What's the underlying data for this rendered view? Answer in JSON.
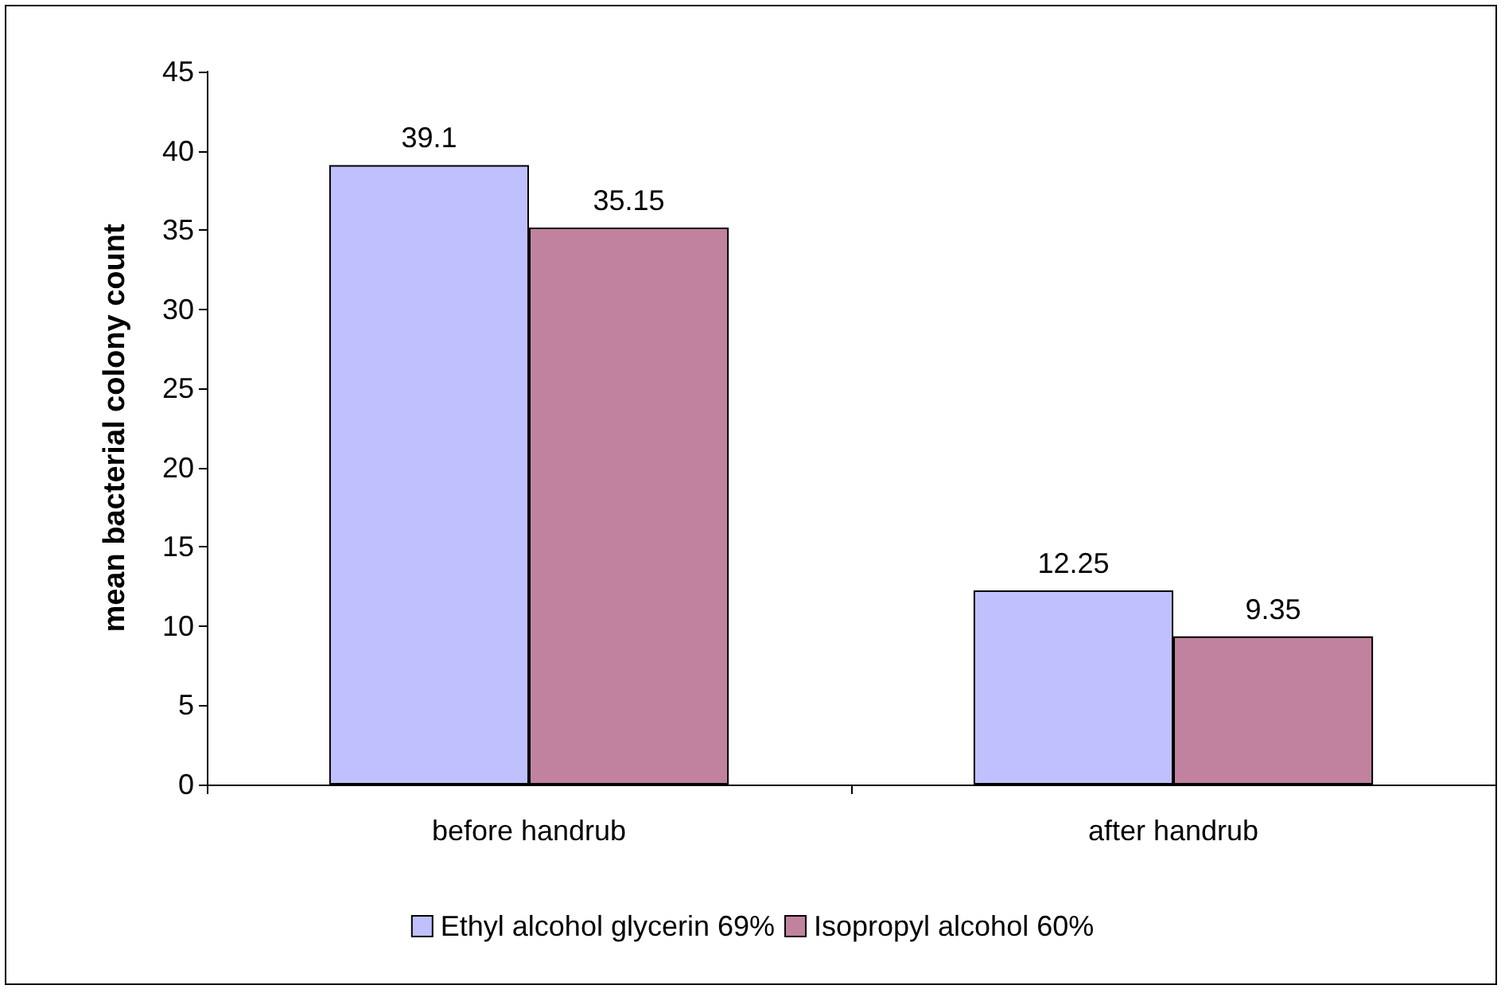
{
  "chart_data": {
    "type": "bar",
    "ylabel": "mean bacterial colony count",
    "categories": [
      "before handrub",
      "after handrub"
    ],
    "series": [
      {
        "name": "Ethyl alcohol glycerin 69%",
        "color": "#c0c0ff",
        "values": [
          39.1,
          12.25
        ]
      },
      {
        "name": "Isopropyl alcohol 60%",
        "color": "#c0829f",
        "values": [
          35.15,
          9.35
        ]
      }
    ],
    "ylim": [
      0,
      45
    ],
    "yticks": [
      0,
      5,
      10,
      15,
      20,
      25,
      30,
      35,
      40,
      45
    ],
    "grid": false,
    "legend": "bottom",
    "data_labels": true
  }
}
